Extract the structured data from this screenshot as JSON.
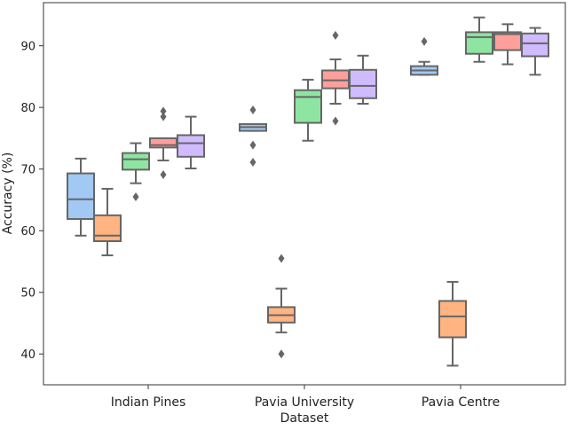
{
  "chart_data": {
    "type": "box",
    "title": "",
    "xlabel": "Dataset",
    "ylabel": "Accuracy (%)",
    "ylim": [
      35,
      97
    ],
    "yticks": [
      40,
      50,
      60,
      70,
      80,
      90
    ],
    "categories": [
      "Indian Pines",
      "Pavia University",
      "Pavia Centre"
    ],
    "grid": false,
    "legend": "none",
    "line_color": "#666666",
    "box_colors": [
      "#a1c9f4",
      "#ffb482",
      "#8de5a1",
      "#ff9f9b",
      "#d0bbff"
    ],
    "groups": [
      {
        "category": "Indian Pines",
        "boxes": [
          {
            "low": 59.2,
            "q1": 61.9,
            "median": 65.1,
            "q3": 69.3,
            "high": 71.7,
            "outliers": []
          },
          {
            "low": 56.0,
            "q1": 58.3,
            "median": 59.2,
            "q3": 62.5,
            "high": 66.8,
            "outliers": []
          },
          {
            "low": 67.7,
            "q1": 69.9,
            "median": 71.6,
            "q3": 72.6,
            "high": 74.2,
            "outliers": [
              65.5
            ]
          },
          {
            "low": 71.4,
            "q1": 73.5,
            "median": 73.9,
            "q3": 75.0,
            "high": 75.0,
            "outliers": [
              79.4,
              78.5,
              69.1
            ]
          },
          {
            "low": 70.1,
            "q1": 72.0,
            "median": 74.2,
            "q3": 75.5,
            "high": 78.5,
            "outliers": []
          }
        ]
      },
      {
        "category": "Pavia University",
        "boxes": [
          {
            "low": 76.2,
            "q1": 76.2,
            "median": 76.8,
            "q3": 77.3,
            "high": 77.3,
            "outliers": [
              79.6,
              73.9,
              71.1
            ]
          },
          {
            "low": 43.5,
            "q1": 45.1,
            "median": 46.3,
            "q3": 47.6,
            "high": 50.6,
            "outliers": [
              55.5,
              40.0
            ]
          },
          {
            "low": 74.6,
            "q1": 77.5,
            "median": 81.7,
            "q3": 82.8,
            "high": 84.5,
            "outliers": []
          },
          {
            "low": 80.6,
            "q1": 83.1,
            "median": 84.4,
            "q3": 86.0,
            "high": 87.8,
            "outliers": [
              91.7,
              77.8
            ]
          },
          {
            "low": 80.6,
            "q1": 81.5,
            "median": 83.5,
            "q3": 86.1,
            "high": 88.4,
            "outliers": []
          }
        ]
      },
      {
        "category": "Pavia Centre",
        "boxes": [
          {
            "low": 85.3,
            "q1": 85.3,
            "median": 86.0,
            "q3": 86.7,
            "high": 87.4,
            "outliers": [
              90.7
            ]
          },
          {
            "low": 38.1,
            "q1": 42.7,
            "median": 46.1,
            "q3": 48.6,
            "high": 51.7,
            "outliers": []
          },
          {
            "low": 87.4,
            "q1": 88.7,
            "median": 91.4,
            "q3": 92.2,
            "high": 94.6,
            "outliers": []
          },
          {
            "low": 87.0,
            "q1": 89.3,
            "median": 91.9,
            "q3": 92.2,
            "high": 93.5,
            "outliers": []
          },
          {
            "low": 85.3,
            "q1": 88.3,
            "median": 90.4,
            "q3": 92.0,
            "high": 92.9,
            "outliers": []
          }
        ]
      }
    ]
  }
}
